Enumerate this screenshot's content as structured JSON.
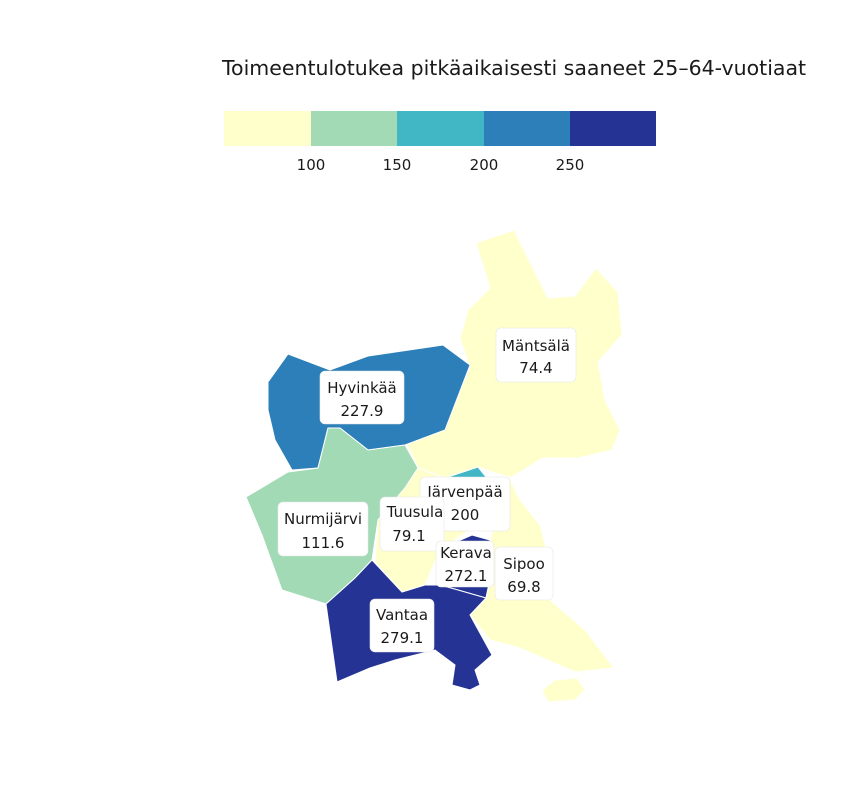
{
  "map": {
    "title": "Toimeentulotukea pitkäaikaisesti saaneet 25–64-vuotiaat",
    "legend": {
      "colors": [
        "#ffffcc",
        "#a1dab4",
        "#41b6c4",
        "#2c7fb8",
        "#253494"
      ],
      "breaks": [
        "100",
        "150",
        "200",
        "250"
      ]
    },
    "regions": [
      {
        "name": "Mäntsälä",
        "value": "74.4",
        "color": "#ffffcc"
      },
      {
        "name": "Hyvinkää",
        "value": "227.9",
        "color": "#2c7fb8"
      },
      {
        "name": "Nurmijärvi",
        "value": "111.6",
        "color": "#a1dab4"
      },
      {
        "name": "Tuusula",
        "value": "79.1",
        "color": "#ffffcc"
      },
      {
        "name": "Järvenpää",
        "value": "200",
        "color": "#41b6c4"
      },
      {
        "name": "Kerava",
        "value": "272.1",
        "color": "#253494"
      },
      {
        "name": "Sipoo",
        "value": "69.8",
        "color": "#ffffcc"
      },
      {
        "name": "Vantaa",
        "value": "279.1",
        "color": "#253494"
      }
    ]
  }
}
